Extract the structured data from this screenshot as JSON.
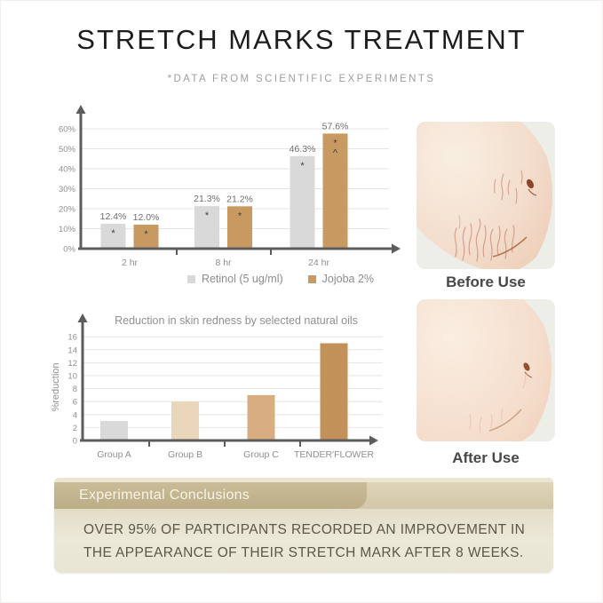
{
  "page": {
    "title": "STRETCH MARKS TREATMENT",
    "subtitle": "*DATA FROM SCIENTIFIC EXPERIMENTS"
  },
  "photos": {
    "before_caption": "Before Use",
    "after_caption": "After Use"
  },
  "conclusions": {
    "heading": "Experimental Conclusions",
    "body": "OVER 95% OF PARTICIPANTS RECORDED AN IMPROVEMENT IN THE APPEARANCE OF THEIR STRETCH MARK AFTER 8 WEEKS."
  },
  "colors": {
    "retinol_bar": "#d9d9d9",
    "jojoba_bar": "#c89a62",
    "axis": "#5c5c5c",
    "grid": "#e4e4e4",
    "tick_label": "#8f8f8f",
    "value_label": "#6e6e6e",
    "banner_tab": "#bbad86",
    "panel_body": "#ebe8d8"
  },
  "chart_data": [
    {
      "type": "bar",
      "title": "",
      "categories": [
        "2 hr",
        "8 hr",
        "24 hr"
      ],
      "yticks": [
        "0%",
        "10%",
        "20%",
        "30%",
        "40%",
        "50%",
        "60%"
      ],
      "ylim": [
        0,
        60
      ],
      "grid": true,
      "legend_position": "bottom",
      "series": [
        {
          "name": "Retinol (5 ug/ml)",
          "color": "#d9d9d9",
          "values": [
            12.4,
            21.3,
            46.3
          ],
          "value_labels": [
            "12.4%",
            "21.3%",
            "46.3%"
          ],
          "bar_markers": [
            [
              "*"
            ],
            [
              "*"
            ],
            [
              "*"
            ]
          ]
        },
        {
          "name": "Jojoba 2%",
          "color": "#c89a62",
          "values": [
            12.0,
            21.2,
            57.6
          ],
          "value_labels": [
            "12.0%",
            "21.2%",
            "57.6%"
          ],
          "bar_markers": [
            [
              "*"
            ],
            [
              "*"
            ],
            [
              "*",
              "^"
            ]
          ]
        }
      ]
    },
    {
      "type": "bar",
      "title": "Reduction in skin redness by selected natural oils",
      "categories": [
        "Group A",
        "Group B",
        "Group C",
        "TENDER'FLOWER"
      ],
      "values": [
        3,
        6,
        7,
        15
      ],
      "bar_colors": [
        "#d9d9d9",
        "#ead6ba",
        "#d9ad82",
        "#c2915a"
      ],
      "ylabel": "%reduction",
      "ylim": [
        0,
        16
      ],
      "ytick_step": 2,
      "grid": true
    }
  ]
}
